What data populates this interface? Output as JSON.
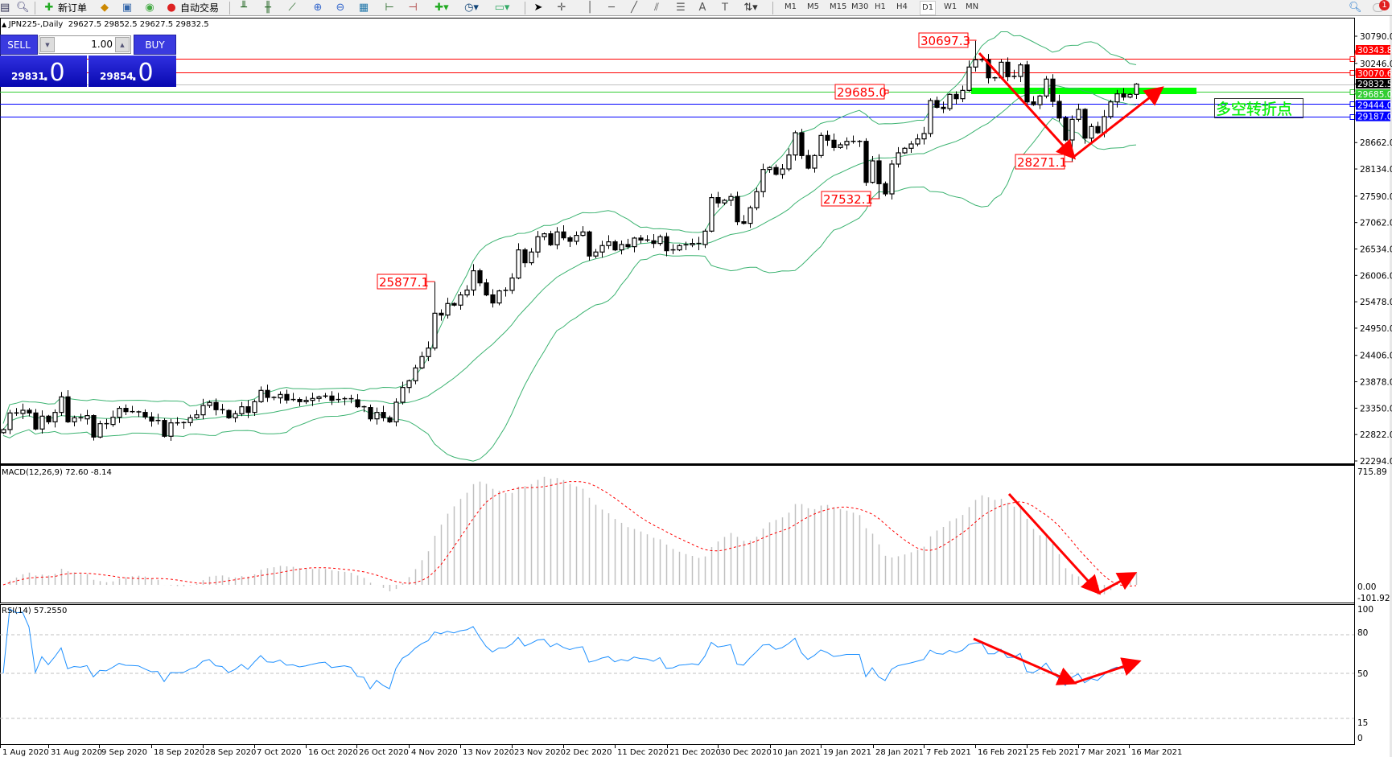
{
  "toolbar": {
    "new_order": "新订单",
    "auto_trading": "自动交易",
    "timeframes": [
      "M1",
      "M5",
      "M15",
      "M30",
      "H1",
      "H4",
      "D1",
      "W1",
      "MN"
    ],
    "active_timeframe": "D1",
    "notification_count": "1"
  },
  "chart_header": {
    "symbol": "JPN225-,Daily",
    "ohlc": "29627.5 29852.5 29627.5 29832.5"
  },
  "trade_panel": {
    "sell_label": "SELL",
    "buy_label": "BUY",
    "lot": "1.00",
    "sell_price_main": "29831",
    "sell_price_frac": ".0",
    "buy_price_main": "29854",
    "buy_price_frac": ".0"
  },
  "chart_data": {
    "type": "candlestick",
    "first_open": 22860,
    "closes": [
      22922,
      23254,
      23244,
      23308,
      23254,
      22933,
      23190,
      23077,
      23265,
      23576,
      23077,
      23158,
      23136,
      23201,
      22772,
      23040,
      23024,
      23168,
      23346,
      23281,
      23276,
      23265,
      23174,
      23093,
      23104,
      22788,
      23056,
      23051,
      23061,
      23158,
      23217,
      23404,
      23464,
      23319,
      23303,
      23158,
      23238,
      23378,
      23265,
      23480,
      23705,
      23565,
      23555,
      23624,
      23512,
      23523,
      23480,
      23506,
      23544,
      23576,
      23592,
      23506,
      23523,
      23539,
      23517,
      23378,
      23362,
      23136,
      23265,
      23158,
      23077,
      23469,
      23764,
      23898,
      24155,
      24381,
      24552,
      25249,
      25212,
      25443,
      25411,
      25615,
      25712,
      26098,
      25856,
      25615,
      25454,
      25696,
      25706,
      25953,
      26516,
      26259,
      26473,
      26779,
      26838,
      26618,
      26875,
      26757,
      26688,
      26806,
      26875,
      26393,
      26473,
      26602,
      26677,
      26516,
      26623,
      26580,
      26752,
      26714,
      26698,
      26645,
      26779,
      26500,
      26516,
      26602,
      26618,
      26645,
      26623,
      26891,
      27562,
      27455,
      27508,
      27583,
      27079,
      27047,
      27358,
      27680,
      28125,
      28163,
      28028,
      28135,
      28414,
      28859,
      28403,
      28151,
      28403,
      28805,
      28709,
      28564,
      28618,
      28687,
      28687,
      28687,
      27867,
      28296,
      27840,
      27636,
      28232,
      28457,
      28548,
      28634,
      28736,
      28843,
      29503,
      29368,
      29342,
      29626,
      29540,
      29706,
      30173,
      30318,
      30318,
      29958,
      29958,
      30269,
      29980,
      29985,
      30216,
      29476,
      29422,
      29594,
      29932,
      29486,
      29154,
      28714,
      29127,
      29326,
      28752,
      28982,
      28859,
      29181,
      29476,
      29637,
      29572,
      29626,
      29832.5
    ],
    "price_axis": {
      "top": 30790.0,
      "bottom": 22294.0,
      "ticks": [
        "30790.0",
        "30246.0",
        "28662.0",
        "28134.0",
        "27590.0",
        "27062.0",
        "26534.0",
        "26006.0",
        "25478.0",
        "24950.0",
        "24406.0",
        "23878.0",
        "23350.0",
        "22822.0",
        "22294.0"
      ]
    },
    "horizontal_lines": [
      {
        "price": 30343.8,
        "label": "30343.8",
        "color": "#ff0000"
      },
      {
        "price": 30070.6,
        "label": "30070.6",
        "color": "#ff0000"
      },
      {
        "price": 29832.5,
        "label": "29832.5",
        "color": "#c0c0c0",
        "tag": "#000000"
      },
      {
        "price": 29685.0,
        "label": "29685.0",
        "color": "#32cd32"
      },
      {
        "price": 29444.0,
        "label": "29444.0",
        "color": "#0000ff"
      },
      {
        "price": 29187.0,
        "label": "29187.0",
        "color": "#0000ff"
      }
    ],
    "annotations": [
      {
        "text": "25877.1",
        "kind": "high"
      },
      {
        "text": "30697.3",
        "kind": "high"
      },
      {
        "text": "29685.0",
        "kind": "level"
      },
      {
        "text": "28271.1",
        "kind": "low"
      },
      {
        "text": "27532.1",
        "kind": "low"
      }
    ],
    "note": "多空转折点",
    "bollinger": {
      "period": 20,
      "deviation": 2,
      "color": "#3cb371"
    },
    "dates": [
      "1 Aug 2020",
      "31 Aug 2020",
      "9 Sep 2020",
      "18 Sep 2020",
      "28 Sep 2020",
      "7 Oct 2020",
      "16 Oct 2020",
      "26 Oct 2020",
      "4 Nov 2020",
      "13 Nov 2020",
      "23 Nov 2020",
      "2 Dec 2020",
      "11 Dec 2020",
      "21 Dec 2020",
      "30 Dec 2020",
      "10 Jan 2021",
      "19 Jan 2021",
      "28 Jan 2021",
      "7 Feb 2021",
      "16 Feb 2021",
      "25 Feb 2021",
      "7 Mar 2021",
      "16 Mar 2021"
    ],
    "macd": {
      "label": "MACD(12,26,9) 72.60 -8.14",
      "fast": 12,
      "slow": 26,
      "signal": 9,
      "axis": {
        "max": 715.89,
        "zero": "0.00",
        "min": -101.92,
        "max_label": "715.89",
        "min_label": "-101.92"
      },
      "bar_color": "#c0c0c0",
      "signal_color": "#ff0000"
    },
    "rsi": {
      "label": "RSI(14) 57.2550",
      "period": 14,
      "levels": [
        "100",
        "80",
        "50",
        "15",
        "0"
      ],
      "color": "#1e90ff"
    },
    "arrow_color": "#ff0000",
    "highlight_color": "#00ff00"
  }
}
